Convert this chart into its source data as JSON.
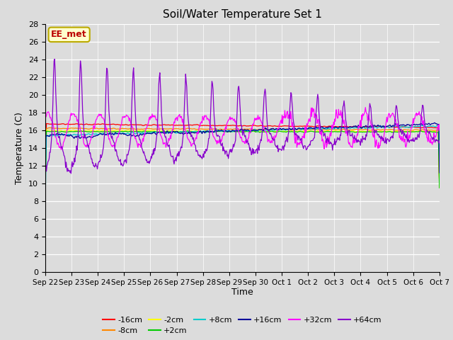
{
  "title": "Soil/Water Temperature Set 1",
  "xlabel": "Time",
  "ylabel": "Temperature (C)",
  "ylim": [
    0,
    28
  ],
  "yticks": [
    0,
    2,
    4,
    6,
    8,
    10,
    12,
    14,
    16,
    18,
    20,
    22,
    24,
    26,
    28
  ],
  "xtick_labels": [
    "Sep 22",
    "Sep 23",
    "Sep 24",
    "Sep 25",
    "Sep 26",
    "Sep 27",
    "Sep 28",
    "Sep 29",
    "Sep 30",
    "Oct 1",
    "Oct 2",
    "Oct 3",
    "Oct 4",
    "Oct 5",
    "Oct 6",
    "Oct 7"
  ],
  "bg_color": "#dcdcdc",
  "annotation_text": "EE_met",
  "annotation_bg": "#ffffcc",
  "annotation_border": "#bbaa00",
  "annotation_text_color": "#bb0000",
  "legend_entries": [
    "-16cm",
    "-8cm",
    "-2cm",
    "+2cm",
    "+8cm",
    "+16cm",
    "+32cm",
    "+64cm"
  ],
  "legend_colors": [
    "#ff0000",
    "#ff8800",
    "#ffff00",
    "#00cc00",
    "#00cccc",
    "#000099",
    "#ff00ff",
    "#8800cc"
  ]
}
